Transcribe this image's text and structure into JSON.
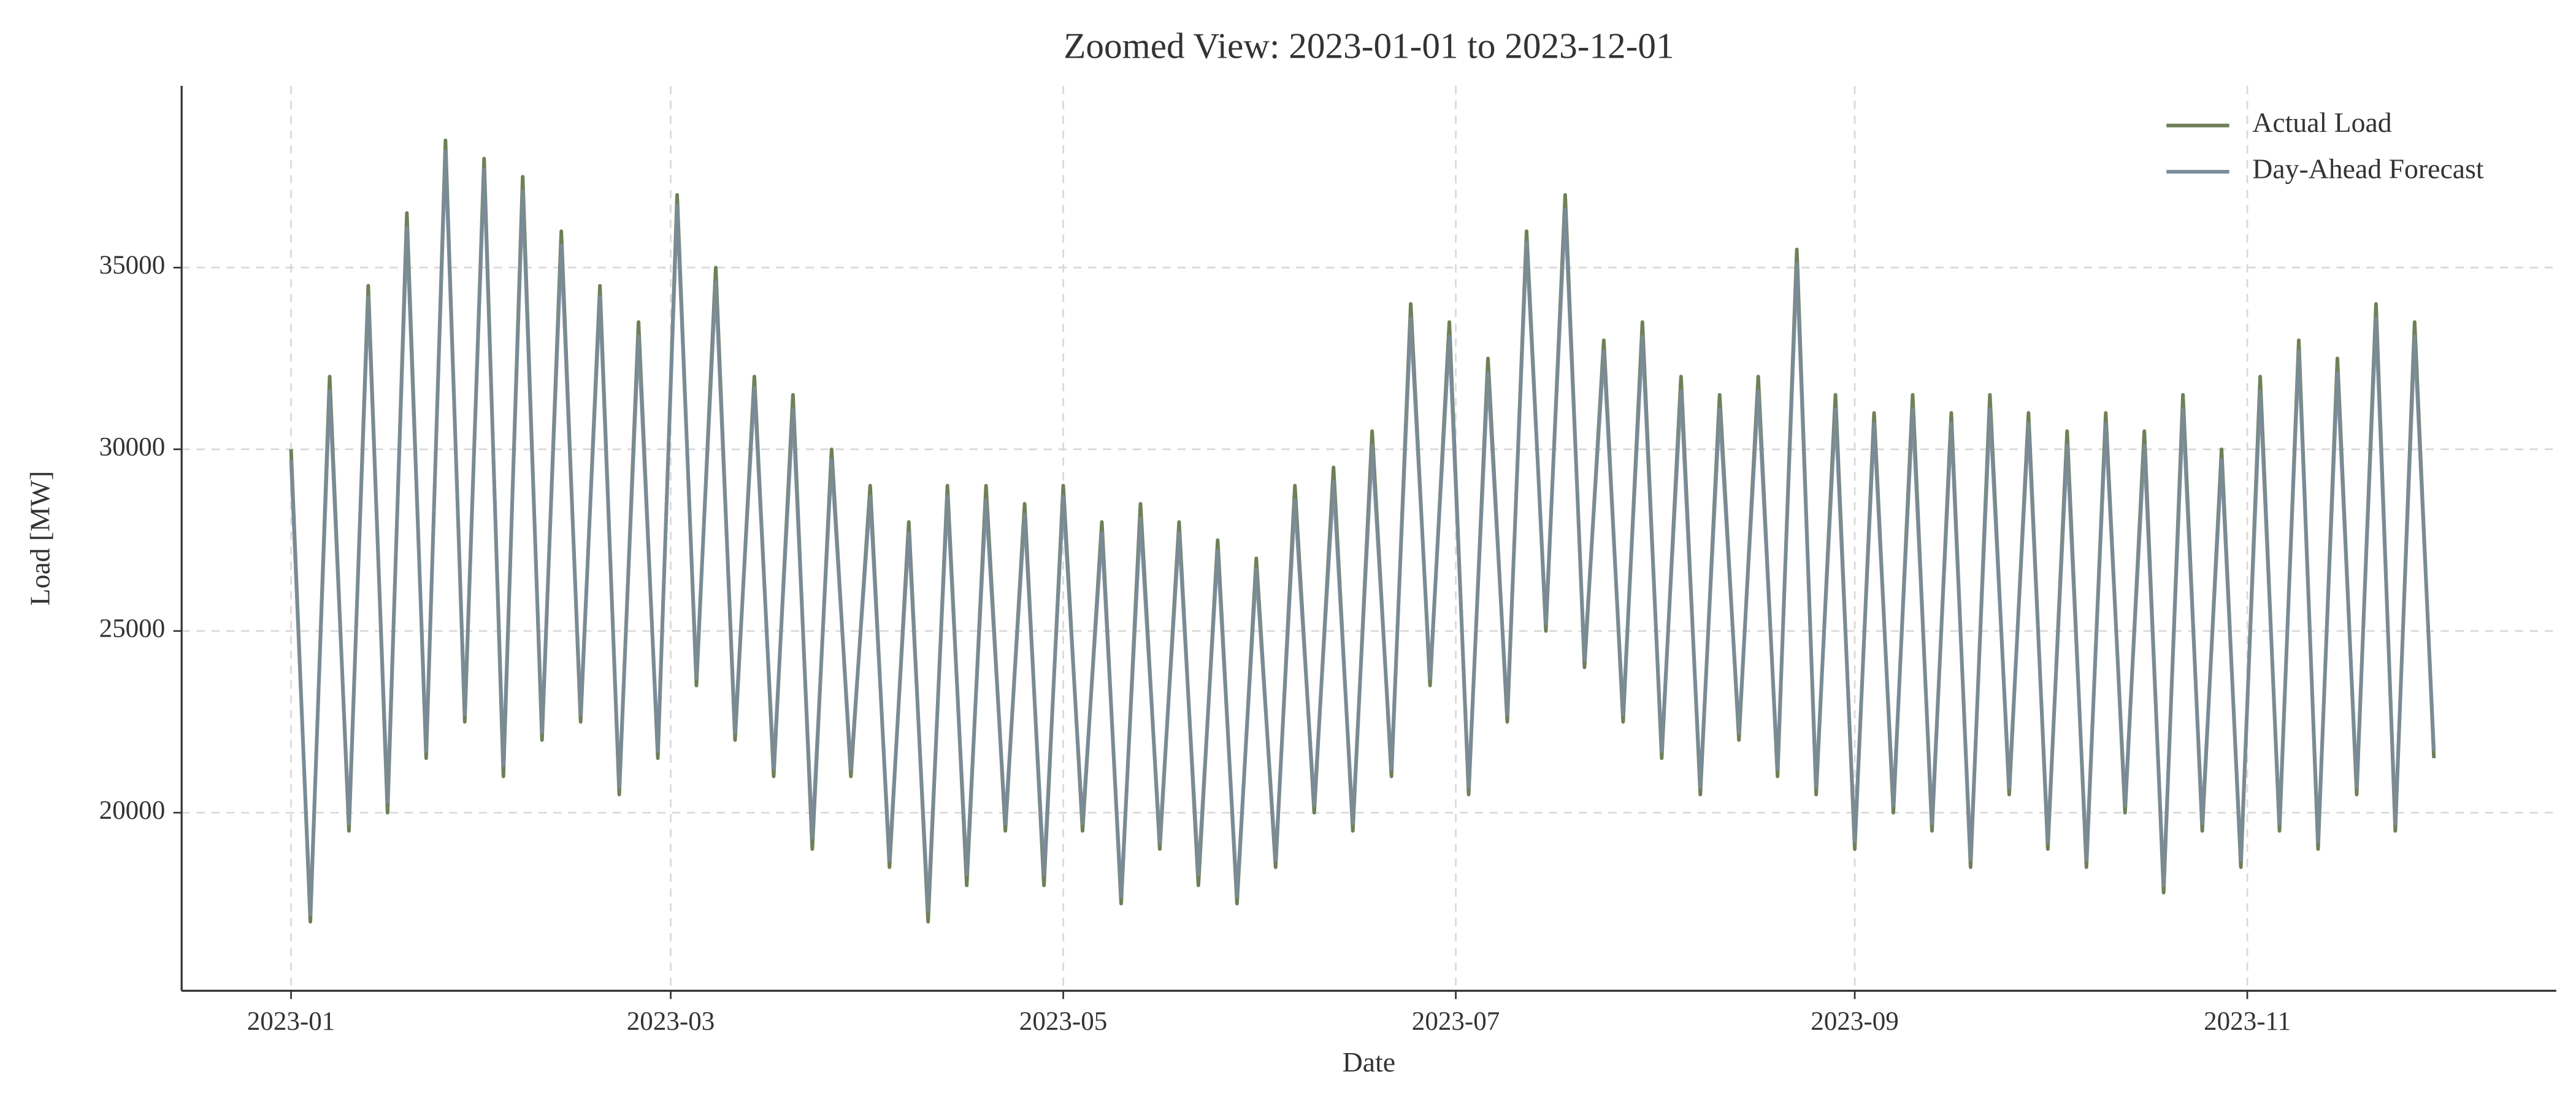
{
  "chart_data": {
    "type": "line",
    "title": "Zoomed View: 2023-01-01 to 2023-12-01",
    "x_label": "Date",
    "y_label": "Load [MW]",
    "x": [
      "2023-01-01",
      "2023-01-04",
      "2023-01-07",
      "2023-01-10",
      "2023-01-13",
      "2023-01-16",
      "2023-01-19",
      "2023-01-22",
      "2023-01-25",
      "2023-01-28",
      "2023-01-31",
      "2023-02-03",
      "2023-02-06",
      "2023-02-09",
      "2023-02-12",
      "2023-02-15",
      "2023-02-18",
      "2023-02-21",
      "2023-02-24",
      "2023-02-27",
      "2023-03-02",
      "2023-03-05",
      "2023-03-08",
      "2023-03-11",
      "2023-03-14",
      "2023-03-17",
      "2023-03-20",
      "2023-03-23",
      "2023-03-26",
      "2023-03-29",
      "2023-04-01",
      "2023-04-04",
      "2023-04-07",
      "2023-04-10",
      "2023-04-13",
      "2023-04-16",
      "2023-04-19",
      "2023-04-22",
      "2023-04-25",
      "2023-04-28",
      "2023-05-01",
      "2023-05-04",
      "2023-05-07",
      "2023-05-10",
      "2023-05-13",
      "2023-05-16",
      "2023-05-19",
      "2023-05-22",
      "2023-05-25",
      "2023-05-28",
      "2023-05-31",
      "2023-06-03",
      "2023-06-06",
      "2023-06-09",
      "2023-06-12",
      "2023-06-15",
      "2023-06-18",
      "2023-06-21",
      "2023-06-24",
      "2023-06-27",
      "2023-06-30",
      "2023-07-03",
      "2023-07-06",
      "2023-07-09",
      "2023-07-12",
      "2023-07-15",
      "2023-07-18",
      "2023-07-21",
      "2023-07-24",
      "2023-07-27",
      "2023-07-30",
      "2023-08-02",
      "2023-08-05",
      "2023-08-08",
      "2023-08-11",
      "2023-08-14",
      "2023-08-17",
      "2023-08-20",
      "2023-08-23",
      "2023-08-26",
      "2023-08-29",
      "2023-09-01",
      "2023-09-04",
      "2023-09-07",
      "2023-09-10",
      "2023-09-13",
      "2023-09-16",
      "2023-09-19",
      "2023-09-22",
      "2023-09-25",
      "2023-09-28",
      "2023-10-01",
      "2023-10-04",
      "2023-10-07",
      "2023-10-10",
      "2023-10-13",
      "2023-10-16",
      "2023-10-19",
      "2023-10-22",
      "2023-10-25",
      "2023-10-28",
      "2023-10-31",
      "2023-11-03",
      "2023-11-06",
      "2023-11-09",
      "2023-11-12",
      "2023-11-15",
      "2023-11-18",
      "2023-11-21",
      "2023-11-24",
      "2023-11-27",
      "2023-11-30"
    ],
    "series": [
      {
        "name": "Actual Load",
        "color": "#6f8057",
        "values": [
          30000,
          17000,
          32000,
          19500,
          34500,
          20000,
          36500,
          21500,
          38500,
          22500,
          38000,
          21000,
          37500,
          22000,
          36000,
          22500,
          34500,
          20500,
          33500,
          21500,
          37000,
          23500,
          35000,
          22000,
          32000,
          21000,
          31500,
          19000,
          30000,
          21000,
          29000,
          18500,
          28000,
          17000,
          29000,
          18000,
          29000,
          19500,
          28500,
          18000,
          29000,
          19500,
          28000,
          17500,
          28500,
          19000,
          28000,
          18000,
          27500,
          17500,
          27000,
          18500,
          29000,
          20000,
          29500,
          19500,
          30500,
          21000,
          34000,
          23500,
          33500,
          20500,
          32500,
          22500,
          36000,
          25000,
          37000,
          24000,
          33000,
          22500,
          33500,
          21500,
          32000,
          20500,
          31500,
          22000,
          32000,
          21000,
          35500,
          20500,
          31500,
          19000,
          31000,
          20000,
          31500,
          19500,
          31000,
          18500,
          31500,
          20500,
          31000,
          19000,
          30500,
          18500,
          31000,
          20000,
          30500,
          17800,
          31500,
          19500,
          30000,
          18500,
          32000,
          19500,
          33000,
          19000,
          32500,
          20500,
          34000,
          19500,
          33500,
          21500
        ]
      },
      {
        "name": "Day-Ahead Forecast",
        "color": "#7b8c9c",
        "values": [
          29700,
          17200,
          31600,
          19700,
          34200,
          20300,
          36100,
          21700,
          38200,
          22700,
          37700,
          21300,
          37100,
          22200,
          35600,
          22700,
          34200,
          20700,
          33100,
          21700,
          36700,
          23700,
          34600,
          22200,
          31700,
          21200,
          31100,
          19300,
          29700,
          21200,
          28700,
          18700,
          27700,
          17300,
          28700,
          18300,
          28600,
          19700,
          28200,
          18300,
          28700,
          19700,
          27700,
          17700,
          28100,
          19200,
          27700,
          18300,
          27200,
          17700,
          26700,
          18700,
          28600,
          20200,
          29100,
          19700,
          30100,
          21200,
          33600,
          23700,
          33100,
          20700,
          32100,
          22700,
          35700,
          25200,
          36600,
          24200,
          32700,
          22700,
          33100,
          21700,
          31600,
          20700,
          31100,
          22200,
          31600,
          21200,
          35100,
          20700,
          31100,
          19200,
          30700,
          20200,
          31100,
          19700,
          30700,
          18700,
          31100,
          20700,
          30700,
          19200,
          30100,
          18700,
          30700,
          20200,
          30100,
          18000,
          31100,
          19700,
          29700,
          18700,
          31600,
          19700,
          32700,
          19200,
          32100,
          20700,
          33600,
          19700,
          33100,
          21700
        ]
      }
    ],
    "xlim": [
      "2022-12-15",
      "2023-12-19"
    ],
    "xticks": [
      {
        "value": "2023-01-01",
        "label": "2023-01"
      },
      {
        "value": "2023-03-01",
        "label": "2023-03"
      },
      {
        "value": "2023-05-01",
        "label": "2023-05"
      },
      {
        "value": "2023-07-01",
        "label": "2023-07"
      },
      {
        "value": "2023-09-01",
        "label": "2023-09"
      },
      {
        "value": "2023-11-01",
        "label": "2023-11"
      }
    ],
    "ylim": [
      15100,
      40000
    ],
    "yticks": [
      20000,
      25000,
      30000,
      35000
    ],
    "grid": true,
    "legend": "upper right"
  }
}
